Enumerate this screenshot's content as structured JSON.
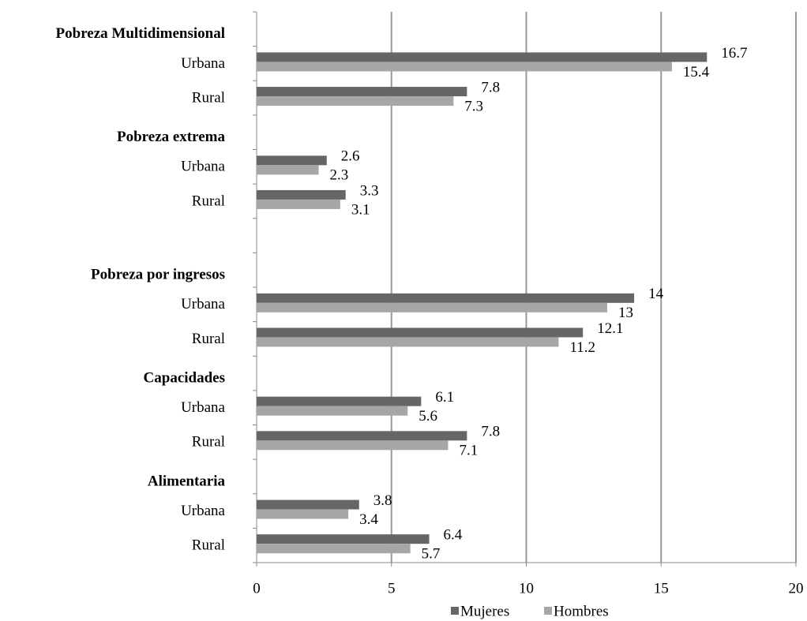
{
  "chart_data": {
    "type": "hbar",
    "categories": [
      "Pobreza Multidimensional",
      "Urbana",
      "Rural",
      "Pobreza extrema",
      "Urbana",
      "Rural",
      null,
      "Pobreza por ingresos",
      "Urbana",
      "Rural",
      "Capacidades",
      "Urbana",
      "Rural",
      "Alimentaria",
      "Urbana",
      "Rural"
    ],
    "series": [
      {
        "name": "Mujeres",
        "color": "#666666",
        "values": [
          null,
          16.7,
          7.8,
          null,
          2.6,
          3.3,
          null,
          null,
          14,
          12.1,
          null,
          6.1,
          7.8,
          null,
          3.8,
          6.4
        ]
      },
      {
        "name": "Hombres",
        "color": "#a6a6a6",
        "values": [
          null,
          15.4,
          7.3,
          null,
          2.3,
          3.1,
          null,
          null,
          13,
          11.2,
          null,
          5.6,
          7.1,
          null,
          3.4,
          5.7
        ]
      }
    ],
    "xlim": [
      0,
      20
    ],
    "xticks": [
      0,
      5,
      10,
      15,
      20
    ],
    "grid": true,
    "legend": "bottom"
  }
}
